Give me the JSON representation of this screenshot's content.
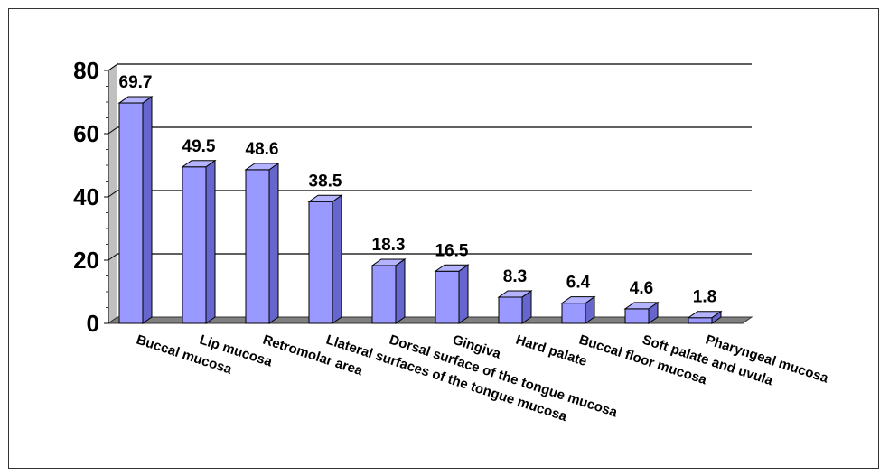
{
  "chart_data": {
    "type": "bar",
    "categories": [
      "Buccal mucosa",
      "Lip mucosa",
      "Retromolar area",
      "Llateral surfaces of the tongue mucosa",
      "Dorsal surface of the tongue mucosa",
      "Gingiva",
      "Hard palate",
      "Buccal floor mucosa",
      "Soft palate and uvula",
      "Pharyngeal mucosa"
    ],
    "values": [
      69.7,
      49.5,
      48.6,
      38.5,
      18.3,
      16.5,
      8.3,
      6.4,
      4.6,
      1.8
    ],
    "value_labels": [
      "69.7",
      "49.5",
      "48.6",
      "38.5",
      "18.3",
      "16.5",
      "8.3",
      "6.4",
      "4.6",
      "1.8"
    ],
    "ylim": [
      0,
      80
    ],
    "yticks": [
      "0",
      "20",
      "40",
      "60",
      "80"
    ],
    "grid": true,
    "style": "3d-column",
    "colors": {
      "bar_front": "#9999ff",
      "bar_side": "#6666cc",
      "bar_top": "#b3b3ff",
      "floor": "#808080",
      "wall": "#c0c0c0",
      "grid": "#000000"
    }
  }
}
